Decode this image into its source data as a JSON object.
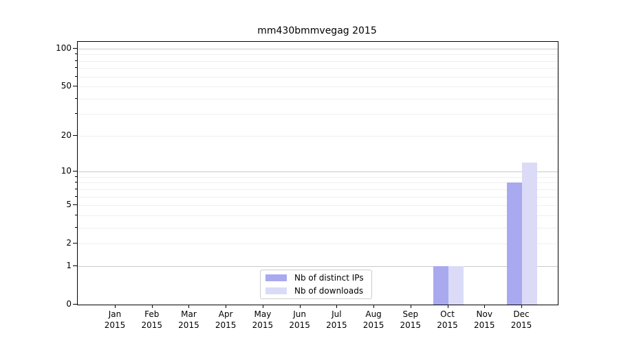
{
  "chart_data": {
    "type": "bar",
    "title": "mm430bmmvegag 2015",
    "year": "2015",
    "months": [
      "Jan",
      "Feb",
      "Mar",
      "Apr",
      "May",
      "Jun",
      "Jul",
      "Aug",
      "Sep",
      "Oct",
      "Nov",
      "Dec"
    ],
    "categories": [
      "Jan 2015",
      "Feb 2015",
      "Mar 2015",
      "Apr 2015",
      "May 2015",
      "Jun 2015",
      "Jul 2015",
      "Aug 2015",
      "Sep 2015",
      "Oct 2015",
      "Nov 2015",
      "Dec 2015"
    ],
    "series": [
      {
        "name": "Nb of distinct IPs",
        "color": "#a9a9f0",
        "values": [
          0,
          0,
          0,
          0,
          0,
          0,
          0,
          0,
          0,
          1,
          0,
          8
        ]
      },
      {
        "name": "Nb of downloads",
        "color": "#dbdbf8",
        "values": [
          0,
          0,
          0,
          0,
          0,
          0,
          0,
          0,
          0,
          1,
          0,
          12
        ]
      }
    ],
    "xlabel": "",
    "ylabel": "",
    "y_axis": {
      "scale": "log1p",
      "tick_values": [
        0,
        1,
        2,
        5,
        10,
        20,
        50,
        100
      ],
      "tick_labels": [
        "0",
        "1",
        "2",
        "5",
        "10",
        "20",
        "50",
        "100"
      ],
      "major_gridlines": [
        1,
        10,
        100
      ],
      "minor_gridlines": [
        2,
        3,
        4,
        5,
        6,
        7,
        8,
        9,
        20,
        30,
        40,
        50,
        60,
        70,
        80,
        90
      ],
      "ylim": [
        0,
        115
      ]
    },
    "grid": "horizontal",
    "legend": {
      "position": "lower center",
      "entries": [
        "Nb of distinct IPs",
        "Nb of downloads"
      ]
    }
  }
}
